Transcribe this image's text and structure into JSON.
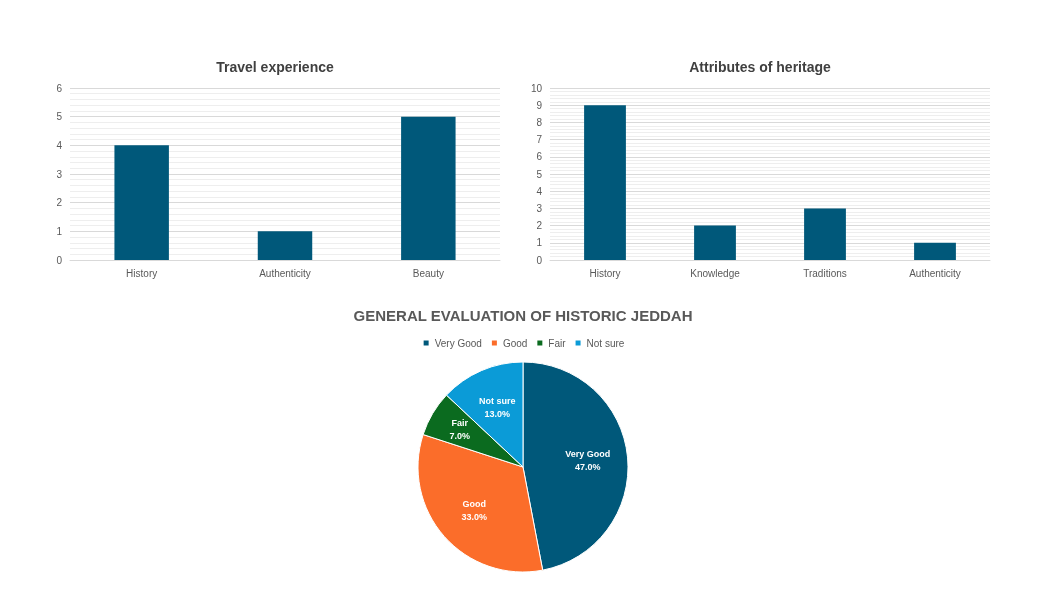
{
  "chart_data": [
    {
      "type": "bar",
      "title": "Travel experience",
      "categories": [
        "History",
        "Authenticity",
        "Beauty"
      ],
      "values": [
        4,
        1,
        5
      ],
      "color": "#00587a",
      "ylim": [
        0,
        6
      ],
      "yticks": [
        0,
        1,
        2,
        3,
        4,
        5,
        6
      ],
      "grid": true
    },
    {
      "type": "bar",
      "title": "Attributes of heritage",
      "categories": [
        "History",
        "Knowledge",
        "Traditions",
        "Authenticity"
      ],
      "values": [
        9,
        2,
        3,
        1
      ],
      "color": "#00587a",
      "ylim": [
        0,
        10
      ],
      "yticks": [
        0,
        1,
        2,
        3,
        4,
        5,
        6,
        7,
        8,
        9,
        10
      ],
      "grid": true
    },
    {
      "type": "pie",
      "title": "GENERAL EVALUATION OF HISTORIC JEDDAH",
      "categories": [
        "Very Good",
        "Good",
        "Fair",
        "Not sure"
      ],
      "values": [
        47,
        33,
        7,
        13
      ],
      "value_labels": [
        "47.0%",
        "33.0%",
        "7.0%",
        "13.0%"
      ],
      "colors": [
        "#00587a",
        "#fb6d2a",
        "#0b6b1f",
        "#0b9bd7"
      ],
      "legend": "top"
    }
  ]
}
